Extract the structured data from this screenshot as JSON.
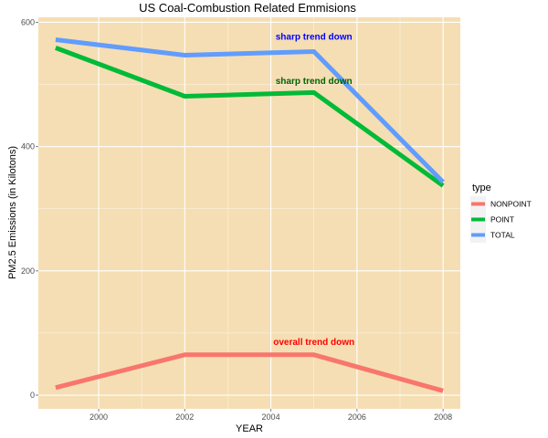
{
  "chart_data": {
    "type": "line",
    "title": "US Coal-Combustion Related Emmisions",
    "xlabel": "YEAR",
    "ylabel": "PM2.5 Emissions (in Kilotons)",
    "xlim": [
      1998.6,
      2008.4
    ],
    "ylim": [
      -22,
      608
    ],
    "x_ticks": [
      2000,
      2002,
      2004,
      2006,
      2008
    ],
    "x_tick_labels": [
      "2000",
      "2002",
      "2004",
      "2006",
      "2008"
    ],
    "y_ticks": [
      0,
      200,
      400,
      600
    ],
    "y_tick_labels": [
      "0",
      "200",
      "400",
      "600"
    ],
    "grid": true,
    "x": [
      1999,
      2002,
      2005,
      2008
    ],
    "series": [
      {
        "name": "NONPOINT",
        "color": "#f8766d",
        "values": [
          12,
          65,
          65,
          7
        ]
      },
      {
        "name": "POINT",
        "color": "#00ba38",
        "values": [
          559,
          481,
          487,
          337
        ]
      },
      {
        "name": "TOTAL",
        "color": "#619cff",
        "values": [
          572,
          547,
          553,
          343
        ]
      }
    ],
    "annotations": [
      {
        "text": "sharp trend down",
        "x": 2005,
        "y": 578,
        "color": "#0000ff"
      },
      {
        "text": "sharp trend down",
        "x": 2005,
        "y": 507,
        "color": "#006400"
      },
      {
        "text": "overall trend down",
        "x": 2005,
        "y": 87,
        "color": "#ff0000"
      }
    ],
    "legend": {
      "title": "type",
      "position": "right"
    }
  }
}
